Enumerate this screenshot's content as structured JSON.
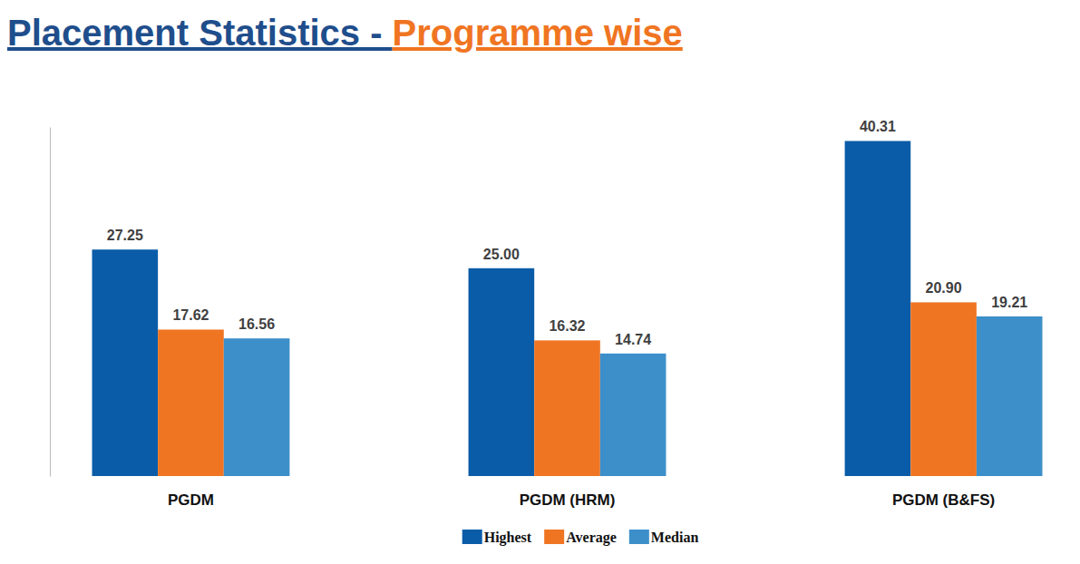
{
  "chart_data": {
    "type": "bar",
    "title": "Placement Statistics - Programme wise",
    "categories": [
      "PGDM",
      "PGDM (HRM)",
      "PGDM (B&FS)"
    ],
    "series": [
      {
        "name": "Highest",
        "color": "#0b5ca8",
        "values": [
          27.25,
          25,
          40.31
        ],
        "value_labels": [
          "27.25",
          "25.00",
          "40.31"
        ]
      },
      {
        "name": "Average",
        "color": "#f07522",
        "values": [
          17.62,
          16.32,
          20.9
        ],
        "value_labels": [
          "17.62",
          "16.32",
          "20.90"
        ]
      },
      {
        "name": "Median",
        "color": "#3d8fc9",
        "values": [
          16.56,
          14.74,
          19.21
        ],
        "value_labels": [
          "16.56",
          "14.74",
          "19.21"
        ]
      }
    ],
    "ylim": [
      0,
      42
    ],
    "yticks": [],
    "tick_labels": "x",
    "data_labels": true,
    "grid": false,
    "legend": "bottom"
  }
}
